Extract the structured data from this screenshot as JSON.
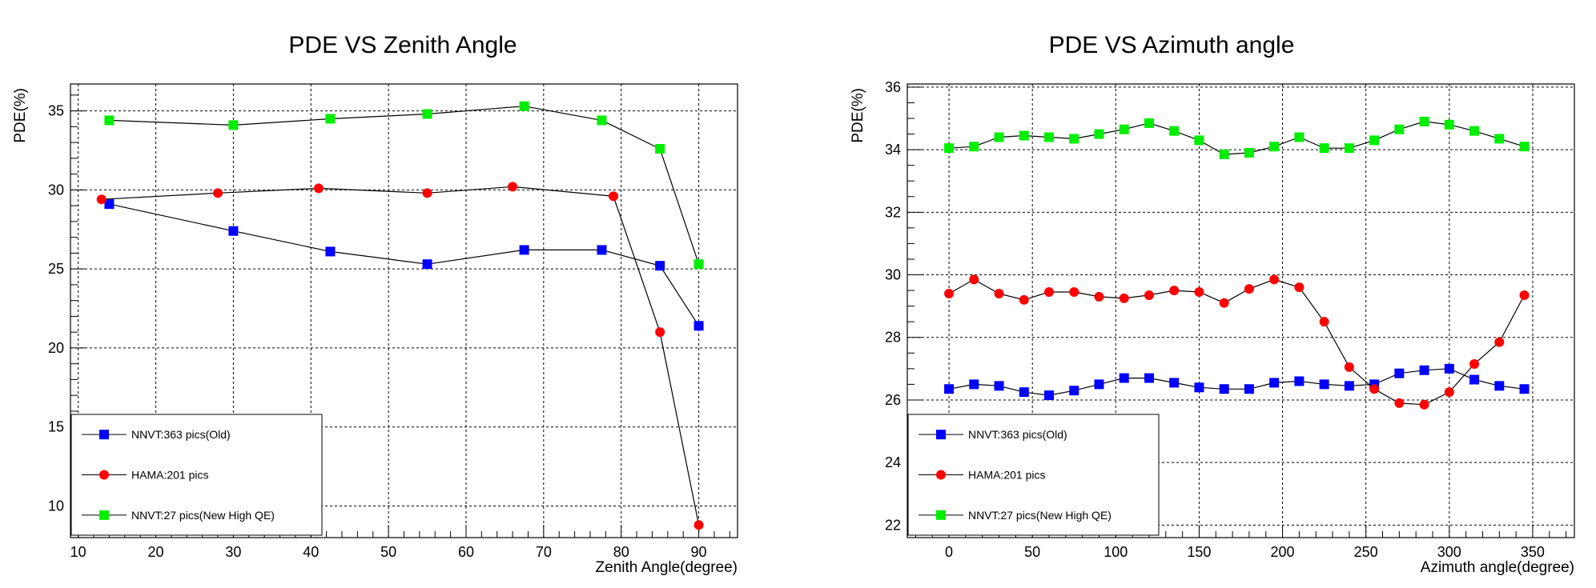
{
  "chart_data": [
    {
      "type": "line",
      "title": "PDE VS Zenith Angle",
      "xlabel": "Zenith Angle(degree)",
      "ylabel": "PDE(%)",
      "xlim": [
        9,
        95
      ],
      "ylim": [
        8,
        36.7
      ],
      "xticks": [
        10,
        20,
        30,
        40,
        50,
        60,
        70,
        80,
        90
      ],
      "yticks": [
        10,
        15,
        20,
        25,
        30,
        35
      ],
      "grid": true,
      "legend_position": "bottom-left",
      "series": [
        {
          "name": "NNVT:363 pics(Old)",
          "color": "#0000ff",
          "marker": "square",
          "x": [
            14,
            30,
            42.5,
            55,
            67.5,
            77.5,
            85,
            90
          ],
          "y": [
            29.1,
            27.4,
            26.1,
            25.3,
            26.2,
            26.2,
            25.2,
            21.4
          ]
        },
        {
          "name": "HAMA:201 pics",
          "color": "#ff0000",
          "marker": "circle",
          "x": [
            13,
            28,
            41,
            55,
            66,
            79,
            85,
            90
          ],
          "y": [
            29.4,
            29.8,
            30.1,
            29.8,
            30.2,
            29.6,
            21.0,
            8.8
          ]
        },
        {
          "name": "NNVT:27 pics(New High QE)",
          "color": "#00ee00",
          "marker": "square",
          "x": [
            14,
            30,
            42.5,
            55,
            67.5,
            77.5,
            85,
            90
          ],
          "y": [
            34.4,
            34.1,
            34.5,
            34.8,
            35.3,
            34.4,
            32.6,
            25.3
          ]
        }
      ]
    },
    {
      "type": "line",
      "title": "PDE VS Azimuth angle",
      "xlabel": "Azimuth angle(degree)",
      "ylabel": "PDE(%)",
      "xlim": [
        -25,
        375
      ],
      "ylim": [
        21.6,
        36.1
      ],
      "xticks": [
        0,
        50,
        100,
        150,
        200,
        250,
        300,
        350
      ],
      "yticks": [
        22,
        24,
        26,
        28,
        30,
        32,
        34,
        36
      ],
      "grid": true,
      "legend_position": "bottom-left",
      "series": [
        {
          "name": "NNVT:363 pics(Old)",
          "color": "#0000ff",
          "marker": "square",
          "x": [
            0,
            15,
            30,
            45,
            60,
            75,
            90,
            105,
            120,
            135,
            150,
            165,
            180,
            195,
            210,
            225,
            240,
            255,
            270,
            285,
            300,
            315,
            330,
            345
          ],
          "y": [
            26.35,
            26.5,
            26.45,
            26.25,
            26.15,
            26.3,
            26.5,
            26.7,
            26.7,
            26.55,
            26.4,
            26.35,
            26.35,
            26.55,
            26.6,
            26.5,
            26.45,
            26.5,
            26.85,
            26.95,
            27.0,
            26.65,
            26.45,
            26.35
          ]
        },
        {
          "name": "HAMA:201 pics",
          "color": "#ff0000",
          "marker": "circle",
          "x": [
            0,
            15,
            30,
            45,
            60,
            75,
            90,
            105,
            120,
            135,
            150,
            165,
            180,
            195,
            210,
            225,
            240,
            255,
            270,
            285,
            300,
            315,
            330,
            345
          ],
          "y": [
            29.4,
            29.85,
            29.4,
            29.2,
            29.45,
            29.45,
            29.3,
            29.25,
            29.35,
            29.5,
            29.45,
            29.1,
            29.55,
            29.85,
            29.6,
            28.5,
            27.05,
            26.35,
            25.9,
            25.85,
            26.25,
            27.15,
            27.85,
            29.35
          ]
        },
        {
          "name": "NNVT:27 pics(New High QE)",
          "color": "#00ee00",
          "marker": "square",
          "x": [
            0,
            15,
            30,
            45,
            60,
            75,
            90,
            105,
            120,
            135,
            150,
            165,
            180,
            195,
            210,
            225,
            240,
            255,
            270,
            285,
            300,
            315,
            330,
            345
          ],
          "y": [
            34.05,
            34.1,
            34.4,
            34.45,
            34.4,
            34.35,
            34.5,
            34.65,
            34.85,
            34.6,
            34.3,
            33.85,
            33.9,
            34.1,
            34.4,
            34.05,
            34.05,
            34.3,
            34.65,
            34.9,
            34.8,
            34.6,
            34.35,
            34.1
          ]
        }
      ]
    }
  ]
}
